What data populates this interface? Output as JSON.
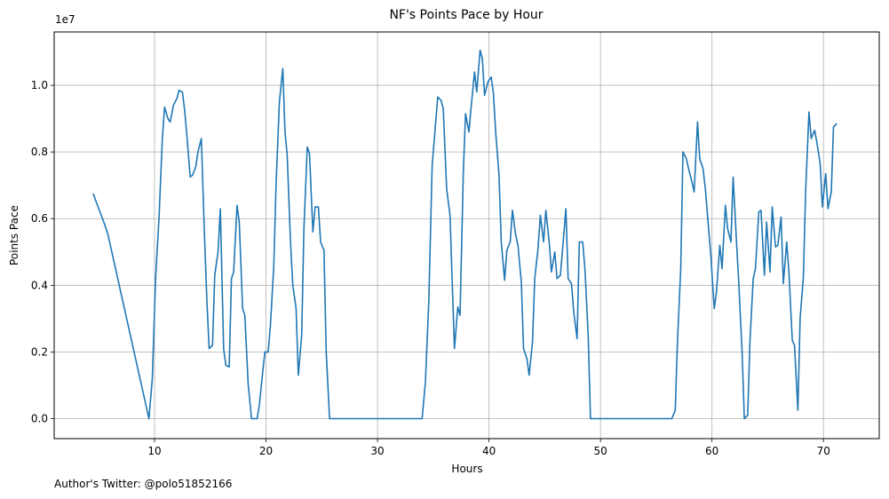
{
  "chart_data": {
    "type": "line",
    "title": "NF's Points Pace by Hour",
    "xlabel": "Hours",
    "ylabel": "Points Pace",
    "y_offset_text": "1e7",
    "xlim": [
      1,
      75
    ],
    "ylim": [
      -600000,
      11600000
    ],
    "x_ticks": [
      10,
      20,
      30,
      40,
      50,
      60,
      70
    ],
    "x_tick_labels": [
      "10",
      "20",
      "30",
      "40",
      "50",
      "60",
      "70"
    ],
    "y_ticks": [
      0,
      2000000,
      4000000,
      6000000,
      8000000,
      10000000
    ],
    "y_tick_labels": [
      "0.0",
      "0.2",
      "0.4",
      "0.6",
      "0.8",
      "1.0"
    ],
    "grid": true,
    "line_color": "#1f77b4",
    "series": [
      {
        "x": [
          4.5,
          5.0,
          5.5,
          5.8,
          9.5,
          9.8,
          10.1,
          10.4,
          10.7,
          10.9,
          11.2,
          11.4,
          11.7,
          12.0,
          12.2,
          12.5,
          12.7,
          12.9,
          13.2,
          13.4,
          13.7,
          13.9,
          14.2,
          14.5,
          14.7,
          14.9,
          15.2,
          15.4,
          15.7,
          15.9,
          16.2,
          16.4,
          16.7,
          16.9,
          17.1,
          17.4,
          17.6,
          17.9,
          18.1,
          18.4,
          18.7,
          18.9,
          19.2,
          19.4,
          19.7,
          19.9,
          20.2,
          20.4,
          20.7,
          20.9,
          21.2,
          21.5,
          21.7,
          21.9,
          22.2,
          22.4,
          22.7,
          22.9,
          23.2,
          23.4,
          23.7,
          23.9,
          24.2,
          24.4,
          24.7,
          24.9,
          25.2,
          25.4,
          25.7,
          25.9,
          34.0,
          34.3,
          34.6,
          34.9,
          35.2,
          35.4,
          35.7,
          35.9,
          36.2,
          36.5,
          36.7,
          36.9,
          37.2,
          37.4,
          37.7,
          37.9,
          38.2,
          38.4,
          38.7,
          38.9,
          39.2,
          39.4,
          39.6,
          39.9,
          40.2,
          40.4,
          40.6,
          40.9,
          41.1,
          41.4,
          41.6,
          41.9,
          42.1,
          42.4,
          42.6,
          42.9,
          43.1,
          43.4,
          43.6,
          43.9,
          44.1,
          44.4,
          44.6,
          44.9,
          45.1,
          45.4,
          45.6,
          45.9,
          46.1,
          46.4,
          46.6,
          46.9,
          47.1,
          47.4,
          47.6,
          47.9,
          48.1,
          48.4,
          48.6,
          48.9,
          49.1,
          49.4,
          56.4,
          56.7,
          56.9,
          57.2,
          57.4,
          57.7,
          57.9,
          58.2,
          58.4,
          58.7,
          58.9,
          59.2,
          59.4,
          59.7,
          59.9,
          60.2,
          60.4,
          60.7,
          60.9,
          61.2,
          61.4,
          61.7,
          61.9,
          62.2,
          62.4,
          62.7,
          62.9,
          63.2,
          63.4,
          63.7,
          63.9,
          64.2,
          64.4,
          64.7,
          64.9,
          65.2,
          65.4,
          65.7,
          65.9,
          66.2,
          66.4,
          66.7,
          66.9,
          67.2,
          67.4,
          67.7,
          67.9,
          68.2,
          68.4,
          68.7,
          68.9,
          69.2,
          69.4,
          69.7,
          69.9,
          70.2,
          70.4,
          70.7,
          70.9,
          71.2
        ],
        "y": [
          6750000,
          6300000,
          5850000,
          5550000,
          0,
          1200000,
          4200000,
          6000000,
          8400000,
          9350000,
          9000000,
          8900000,
          9400000,
          9600000,
          9850000,
          9800000,
          9250000,
          8500000,
          7250000,
          7300000,
          7550000,
          8000000,
          8400000,
          5300000,
          3500000,
          2100000,
          2200000,
          4300000,
          5000000,
          6300000,
          2100000,
          1600000,
          1550000,
          4200000,
          4400000,
          6400000,
          5900000,
          3300000,
          3100000,
          1050000,
          0,
          0,
          0,
          400000,
          1400000,
          2000000,
          2000000,
          2800000,
          4600000,
          7000000,
          9500000,
          10500000,
          8600000,
          7900000,
          5300000,
          4000000,
          3300000,
          1300000,
          2500000,
          5700000,
          8150000,
          7950000,
          5600000,
          6350000,
          6350000,
          5300000,
          5050000,
          2000000,
          0,
          0,
          0,
          1100000,
          3500000,
          7600000,
          8800000,
          9650000,
          9550000,
          9300000,
          6900000,
          6100000,
          4100000,
          2100000,
          3350000,
          3100000,
          7400000,
          9150000,
          8600000,
          9350000,
          10400000,
          9800000,
          11050000,
          10800000,
          9700000,
          10100000,
          10250000,
          9750000,
          8600000,
          7300000,
          5300000,
          4150000,
          5050000,
          5300000,
          6250000,
          5500000,
          5200000,
          4100000,
          2100000,
          1800000,
          1300000,
          2300000,
          4200000,
          5100000,
          6100000,
          5300000,
          6250000,
          5300000,
          4400000,
          5000000,
          4200000,
          4300000,
          5100000,
          6300000,
          4200000,
          4050000,
          3200000,
          2400000,
          5300000,
          5300000,
          4500000,
          2500000,
          0,
          0,
          0,
          250000,
          2300000,
          4500000,
          8000000,
          7800000,
          7500000,
          7100000,
          6800000,
          8900000,
          7800000,
          7500000,
          6900000,
          5700000,
          4900000,
          3300000,
          3800000,
          5200000,
          4500000,
          6400000,
          5700000,
          5300000,
          7250000,
          5300000,
          4100000,
          2000000,
          0,
          100000,
          2300000,
          4200000,
          4500000,
          6200000,
          6250000,
          4300000,
          5900000,
          4400000,
          6350000,
          5150000,
          5200000,
          6050000,
          4050000,
          5300000,
          4400000,
          2350000,
          2200000,
          250000,
          3000000,
          4250000,
          6800000,
          9200000,
          8400000,
          8650000,
          8300000,
          7650000,
          6350000,
          7350000,
          6300000,
          6800000,
          8750000,
          8850000
        ]
      }
    ]
  },
  "footer": {
    "text": "Author's Twitter: @polo51852166"
  }
}
